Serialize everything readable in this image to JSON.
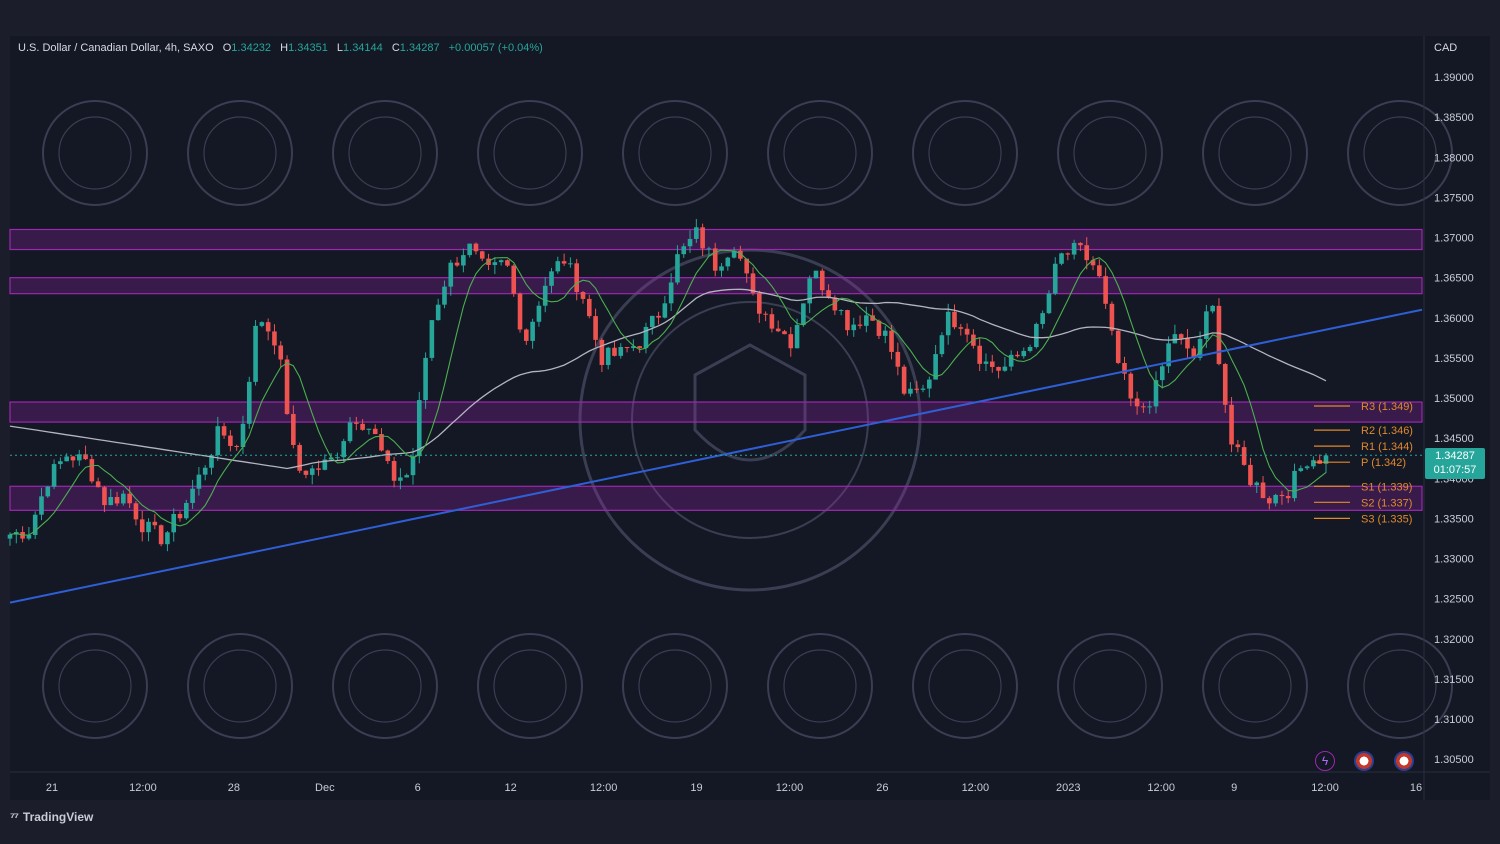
{
  "header": {
    "symbol": "U.S. Dollar / Canadian Dollar, 4h, SAXO",
    "o_label": "O",
    "o": "1.34232",
    "h_label": "H",
    "h": "1.34351",
    "l_label": "L",
    "l": "1.34144",
    "c_label": "C",
    "c": "1.34287",
    "change": "+0.00057 (+0.04%)"
  },
  "currency": "CAD",
  "price_tag": {
    "price": "1.34287",
    "countdown": "01:07:57"
  },
  "footer": {
    "brand": "TradingView"
  },
  "colors": {
    "up": "#26a69a",
    "down": "#ef5350",
    "zone": "#9c27b0",
    "trend": "#2f5fd6",
    "ma_fast": "#4caf50",
    "ma_slow": "#b2b5be",
    "pivot": "#e08a2c",
    "watermark": "#3a3e52"
  },
  "icons": [
    "lightning-icon",
    "us-flag-icon",
    "us-flag-icon"
  ],
  "chart_data": {
    "type": "candlestick",
    "ylim": [
      1.3025,
      1.3925
    ],
    "y_ticks": [
      "1.39000",
      "1.38500",
      "1.38000",
      "1.37500",
      "1.37000",
      "1.36500",
      "1.36000",
      "1.35500",
      "1.35000",
      "1.34500",
      "1.34000",
      "1.33500",
      "1.33000",
      "1.32500",
      "1.32000",
      "1.31500",
      "1.31000",
      "1.30500"
    ],
    "x_ticks": [
      "21",
      "12:00",
      "28",
      "Dec",
      "6",
      "12",
      "12:00",
      "19",
      "12:00",
      "26",
      "12:00",
      "2023",
      "12:00",
      "9",
      "12:00",
      "16"
    ],
    "close_path": [
      1.333,
      1.3335,
      1.34,
      1.343,
      1.342,
      1.337,
      1.338,
      1.334,
      1.3325,
      1.336,
      1.3405,
      1.346,
      1.3435,
      1.3605,
      1.357,
      1.341,
      1.341,
      1.3425,
      1.348,
      1.346,
      1.34,
      1.3405,
      1.359,
      1.366,
      1.369,
      1.3655,
      1.367,
      1.357,
      1.364,
      1.3675,
      1.363,
      1.355,
      1.3555,
      1.357,
      1.3605,
      1.3675,
      1.3705,
      1.3665,
      1.3695,
      1.362,
      1.3595,
      1.357,
      1.366,
      1.363,
      1.359,
      1.3605,
      1.3575,
      1.35,
      1.351,
      1.36,
      1.3595,
      1.3545,
      1.3535,
      1.3555,
      1.359,
      1.3675,
      1.3685,
      1.366,
      1.355,
      1.348,
      1.3505,
      1.3585,
      1.3545,
      1.362,
      1.3445,
      1.34,
      1.3375,
      1.3385,
      1.3425,
      1.3425
    ],
    "support_resistance_zones": [
      [
        1.3685,
        1.371
      ],
      [
        1.363,
        1.365
      ],
      [
        1.347,
        1.3495
      ],
      [
        1.336,
        1.339
      ]
    ],
    "trendline": {
      "from": 1.3245,
      "to": 1.361
    },
    "pivots": [
      {
        "label": "R3",
        "value": "1.349"
      },
      {
        "label": "R2",
        "value": "1.346"
      },
      {
        "label": "R1",
        "value": "1.344"
      },
      {
        "label": "P",
        "value": "1.342"
      },
      {
        "label": "S1",
        "value": "1.339"
      },
      {
        "label": "S2",
        "value": "1.337"
      },
      {
        "label": "S3",
        "value": "1.335"
      }
    ],
    "current_price": 1.34287
  }
}
